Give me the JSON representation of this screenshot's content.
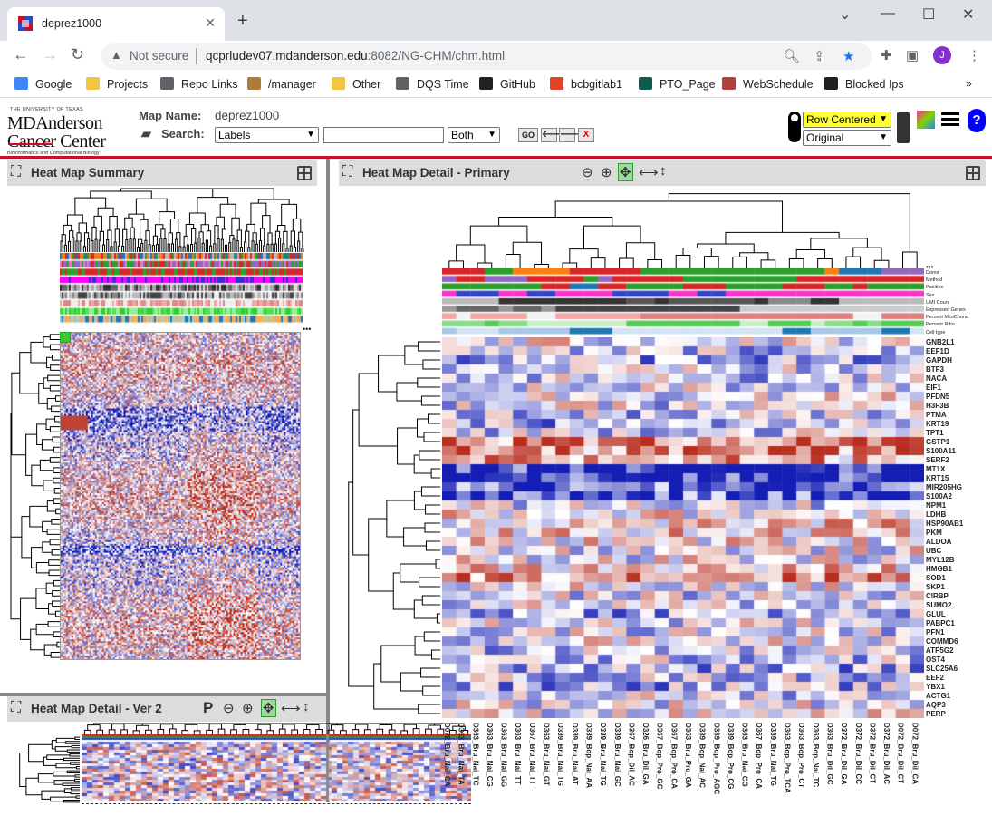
{
  "browser": {
    "tab_title": "deprez1000",
    "security_label": "Not secure",
    "url_host": "qcprludev07.mdanderson.edu",
    "url_path": ":8082/NG-CHM/chm.html",
    "avatar_letter": "J"
  },
  "bookmarks": [
    {
      "label": "Google",
      "color": "#4285f4"
    },
    {
      "label": "Projects",
      "color": "#f4c542"
    },
    {
      "label": "Repo Links",
      "color": "#5f6368"
    },
    {
      "label": "/manager",
      "color": "#b07a3a"
    },
    {
      "label": "Other",
      "color": "#f4c542"
    },
    {
      "label": "DQS Time",
      "color": "#5f6368"
    },
    {
      "label": "GitHub",
      "color": "#202124"
    },
    {
      "label": "bcbgitlab1",
      "color": "#e24329"
    },
    {
      "label": "PTO_Page",
      "color": "#0f5c4f"
    },
    {
      "label": "WebSchedule",
      "color": "#b0413e"
    },
    {
      "label": "Blocked Ips",
      "color": "#202124"
    }
  ],
  "app": {
    "logo_top": "THE UNIVERSITY OF TEXAS",
    "logo_line1": "MDAnderson",
    "logo_line2": "Cancer Center",
    "logo_bottom": "Bioinformatics and Computational Biology",
    "map_name_label": "Map Name:",
    "map_name": "deprez1000",
    "search_label": "Search:",
    "search_field": "Labels",
    "search_axis": "Both",
    "search_value": "",
    "go_label": "GO",
    "prev_label": "🡐",
    "next_label": "🡒",
    "clear_label": "X",
    "color_scheme": "Row Centered",
    "data_layer": "Original",
    "help_label": "?"
  },
  "panels": {
    "summary_title": "Heat Map Summary",
    "detail_primary_title": "Heat Map Detail - Primary",
    "detail_ver2_title": "Heat Map Detail - Ver 2",
    "pin_label": "P"
  },
  "covariates": [
    "Donor",
    "Method",
    "Position",
    "Sex",
    "UMI Count",
    "Expressed Genes",
    "Percent MitoChond",
    "Percent Ribo",
    "Cell type"
  ],
  "row_labels": [
    "GNB2L1",
    "EEF1D",
    "GAPDH",
    "BTF3",
    "NACA",
    "EIF1",
    "PFDN5",
    "H3F3B",
    "PTMA",
    "KRT19",
    "TPT1",
    "GSTP1",
    "S100A11",
    "SERF2",
    "MT1X",
    "KRT15",
    "MIR205HG",
    "S100A2",
    "NPM1",
    "LDHB",
    "HSP90AB1",
    "PKM",
    "ALDOA",
    "UBC",
    "MYL12B",
    "HMGB1",
    "SOD1",
    "SKP1",
    "CIRBP",
    "SUMO2",
    "GLUL",
    "PABPC1",
    "PFN1",
    "COMMD6",
    "ATP5G2",
    "OST4",
    "SLC25A6",
    "EEF2",
    "YBX1",
    "ACTG1",
    "AQP3",
    "PERP"
  ],
  "col_labels": [
    "D072_Bru_Nai_CA",
    "D363_Bru_Nai_TA",
    "D363_Bru_Nai_TC",
    "D363_Bru_Nai_CG",
    "D363_Bru_Nai_GG",
    "D363_Bru_Nai_TT",
    "D367_Bru_Nai_TT",
    "D363_Bru_Nai_GT",
    "D339_Bru_Nai_TG",
    "D339_Bru_Nai_AT",
    "D339_Bop_Nai_AA",
    "D339_Bru_Nai_TG",
    "D339_Bru_Nai_GC",
    "D367_Bop_Dil_AC",
    "D326_Bru_Dil_GA",
    "D367_Bop_Pro_GC",
    "D367_Bop_Pro_CA",
    "D363_Bru_Pro_GA",
    "D339_Bop_Nai_AC",
    "D339_Bop_Pro_AGC",
    "D339_Bop_Pro_CG",
    "D363_Bru_Nai_CG",
    "D367_Bop_Pro_CA",
    "D339_Bru_Nai_TG",
    "D363_Bop_Pro_TCA",
    "D363_Bop_Pro_CT",
    "D363_Bop_Nai_TC",
    "D363_Bru_Dil_GC",
    "D372_Bru_Dil_GA",
    "D372_Bru_Dil_CC",
    "D372_Bru_Dil_CT",
    "D372_Bru_Dil_AC",
    "D072_Bru_Dil_CT",
    "D072_Bru_Dil_CA"
  ]
}
